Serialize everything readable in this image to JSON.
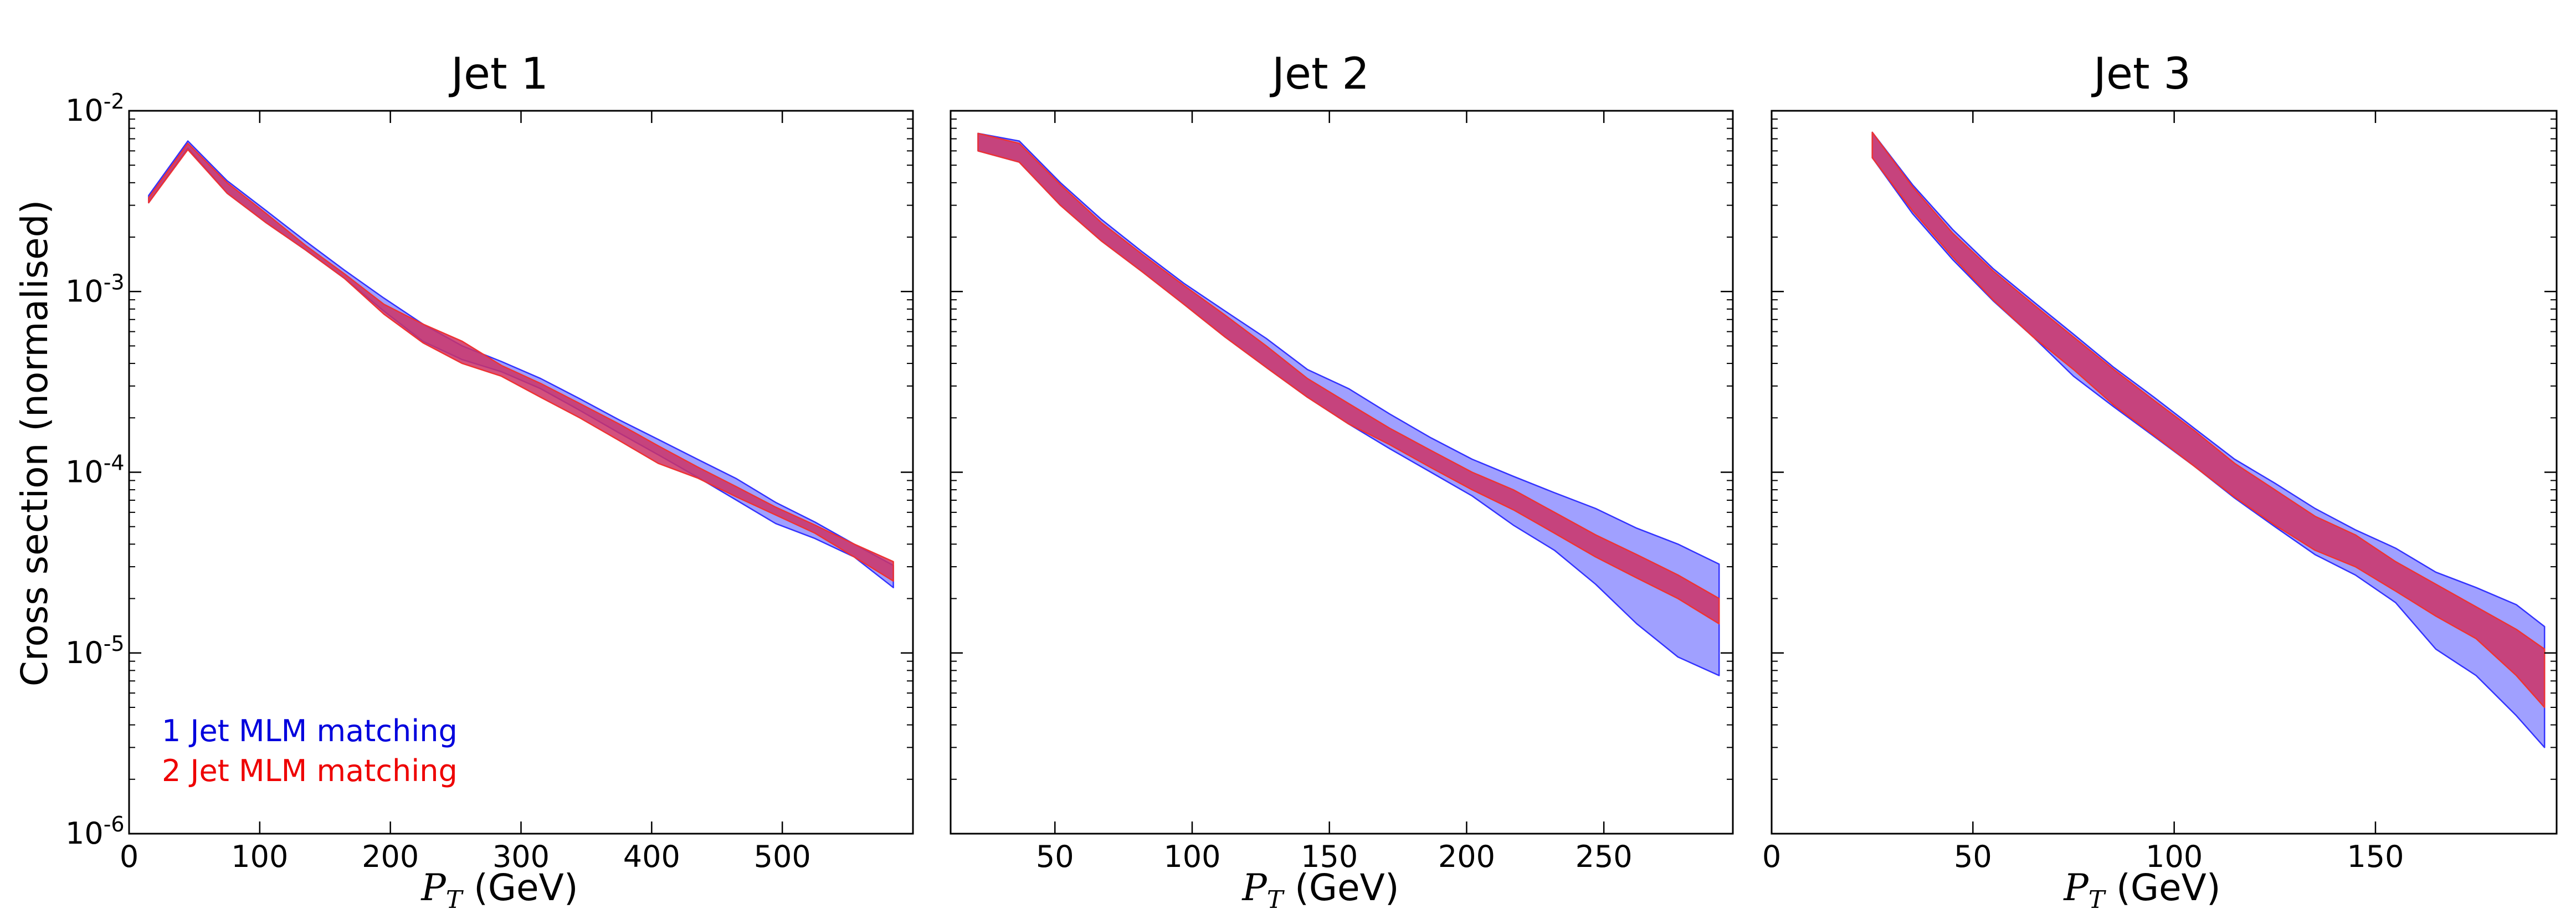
{
  "chart_data": {
    "type": "area",
    "yscale": "log",
    "ylabel": "Cross section (normalised)",
    "shared_y": true,
    "ylim": [
      1e-06,
      0.01
    ],
    "ytick_labels": [
      {
        "value": 1e-06,
        "base": "10",
        "exp": "-6"
      },
      {
        "value": 1e-05,
        "base": "10",
        "exp": "-5"
      },
      {
        "value": 0.0001,
        "base": "10",
        "exp": "-4"
      },
      {
        "value": 0.001,
        "base": "10",
        "exp": "-3"
      },
      {
        "value": 0.01,
        "base": "10",
        "exp": "-2"
      }
    ],
    "xlabel_var": "P",
    "xlabel_sub": "T",
    "xlabel_unit": " (GeV)",
    "colors": {
      "series1_fill": "#7777ff",
      "series1_edge": "#3333ff",
      "series2_fill": "#cc3366",
      "series2_edge": "#ee3333",
      "legend1": "#0000dd",
      "legend2": "#ee0000"
    },
    "legend": {
      "position": "lower-left",
      "entries": [
        "1 Jet MLM matching",
        "2 Jet MLM matching"
      ]
    },
    "panels": [
      {
        "title": "Jet 1",
        "xlim": [
          0,
          600
        ],
        "xticks": [
          0,
          100,
          200,
          300,
          400,
          500
        ],
        "series": [
          {
            "name": "1 Jet MLM matching",
            "x": [
              15,
              45,
              75,
              105,
              135,
              165,
              195,
              225,
              255,
              285,
              315,
              345,
              375,
              405,
              435,
              465,
              495,
              525,
              555,
              585
            ],
            "lower": [
              0.0031,
              0.0062,
              0.0035,
              0.0024,
              0.0017,
              0.00118,
              0.00078,
              0.00053,
              0.00042,
              0.00036,
              0.00029,
              0.00022,
              0.000165,
              0.000125,
              9.4e-05,
              7e-05,
              5.2e-05,
              4.3e-05,
              3.4e-05,
              2.3e-05
            ],
            "upper": [
              0.0034,
              0.0068,
              0.0041,
              0.0028,
              0.0019,
              0.00131,
              0.00092,
              0.00066,
              0.0005,
              0.00041,
              0.00033,
              0.000255,
              0.000195,
              0.000152,
              0.000118,
              9.2e-05,
              6.8e-05,
              5.3e-05,
              4e-05,
              3.05e-05
            ]
          },
          {
            "name": "2 Jet MLM matching",
            "x": [
              15,
              45,
              75,
              105,
              135,
              165,
              195,
              225,
              255,
              285,
              315,
              345,
              375,
              405,
              435,
              465,
              495,
              525,
              555,
              585
            ],
            "lower": [
              0.0031,
              0.0061,
              0.0035,
              0.0024,
              0.0017,
              0.00118,
              0.00075,
              0.00052,
              0.0004,
              0.00034,
              0.00026,
              0.0002,
              0.00015,
              0.000112,
              9.3e-05,
              7.3e-05,
              5.8e-05,
              4.6e-05,
              3.4e-05,
              2.5e-05
            ],
            "upper": [
              0.0033,
              0.0066,
              0.004,
              0.0027,
              0.0018,
              0.00125,
              0.00085,
              0.00066,
              0.00053,
              0.00039,
              0.00031,
              0.00024,
              0.000185,
              0.00014,
              0.000107,
              8.3e-05,
              6.4e-05,
              5.1e-05,
              4e-05,
              3.2e-05
            ]
          }
        ]
      },
      {
        "title": "Jet 2",
        "xlim": [
          12,
          297
        ],
        "xticks": [
          50,
          100,
          150,
          200,
          250
        ],
        "series": [
          {
            "name": "1 Jet MLM matching",
            "x": [
              22,
              37,
              52,
              67,
              82,
              97,
              112,
              127,
              142,
              157,
              172,
              187,
              202,
              217,
              232,
              247,
              262,
              277,
              292
            ],
            "lower": [
              0.006,
              0.0052,
              0.003,
              0.0019,
              0.00128,
              0.00085,
              0.00056,
              0.00038,
              0.00026,
              0.000185,
              0.000135,
              0.0001,
              7.4e-05,
              5.1e-05,
              3.7e-05,
              2.4e-05,
              1.45e-05,
              9.5e-06,
              7.5e-06
            ],
            "upper": [
              0.0075,
              0.0068,
              0.004,
              0.0025,
              0.00165,
              0.00111,
              0.00078,
              0.00055,
              0.00037,
              0.00029,
              0.00021,
              0.000155,
              0.000118,
              9.5e-05,
              7.7e-05,
              6.3e-05,
              4.9e-05,
              4e-05,
              3.1e-05
            ]
          },
          {
            "name": "2 Jet MLM matching",
            "x": [
              22,
              37,
              52,
              67,
              82,
              97,
              112,
              127,
              142,
              157,
              172,
              187,
              202,
              217,
              232,
              247,
              262,
              277,
              292
            ],
            "lower": [
              0.006,
              0.0052,
              0.003,
              0.0019,
              0.00128,
              0.00085,
              0.00056,
              0.00038,
              0.00026,
              0.000185,
              0.000142,
              0.000106,
              8e-05,
              6.2e-05,
              4.6e-05,
              3.4e-05,
              2.6e-05,
              2e-05,
              1.45e-05
            ],
            "upper": [
              0.0075,
              0.0066,
              0.0039,
              0.0024,
              0.0016,
              0.00108,
              0.00074,
              0.0005,
              0.00033,
              0.00024,
              0.000175,
              0.000132,
              0.0001,
              8e-05,
              6e-05,
              4.5e-05,
              3.5e-05,
              2.7e-05,
              2e-05
            ]
          }
        ]
      },
      {
        "title": "Jet 3",
        "xlim": [
          0,
          195
        ],
        "xticks": [
          0,
          50,
          100,
          150
        ],
        "series": [
          {
            "name": "1 Jet MLM matching",
            "x": [
              25,
              35,
              45,
              55,
              65,
              75,
              85,
              95,
              105,
              115,
              125,
              135,
              145,
              155,
              165,
              175,
              185,
              192
            ],
            "lower": [
              0.0055,
              0.0027,
              0.0015,
              0.00089,
              0.00056,
              0.00034,
              0.00023,
              0.000158,
              0.000108,
              7.2e-05,
              5e-05,
              3.5e-05,
              2.7e-05,
              1.9e-05,
              1.05e-05,
              7.5e-06,
              4.5e-06,
              3e-06
            ],
            "upper": [
              0.0076,
              0.0039,
              0.0022,
              0.00134,
              0.00088,
              0.00058,
              0.00038,
              0.00026,
              0.000175,
              0.000118,
              8.7e-05,
              6.3e-05,
              4.8e-05,
              3.8e-05,
              2.8e-05,
              2.3e-05,
              1.85e-05,
              1.4e-05
            ]
          },
          {
            "name": "2 Jet MLM matching",
            "x": [
              25,
              35,
              45,
              55,
              65,
              75,
              85,
              95,
              105,
              115,
              125,
              135,
              145,
              155,
              165,
              175,
              185,
              192
            ],
            "lower": [
              0.0055,
              0.0028,
              0.00155,
              0.0009,
              0.00056,
              0.00037,
              0.000235,
              0.00016,
              0.000108,
              7.3e-05,
              5.1e-05,
              3.7e-05,
              3e-05,
              2.2e-05,
              1.6e-05,
              1.2e-05,
              7.5e-06,
              5e-06
            ],
            "upper": [
              0.0076,
              0.0038,
              0.0021,
              0.0013,
              0.00085,
              0.00056,
              0.00037,
              0.00025,
              0.00017,
              0.000112,
              8e-05,
              5.7e-05,
              4.5e-05,
              3.2e-05,
              2.4e-05,
              1.8e-05,
              1.35e-05,
              1.05e-05
            ]
          }
        ]
      }
    ]
  }
}
